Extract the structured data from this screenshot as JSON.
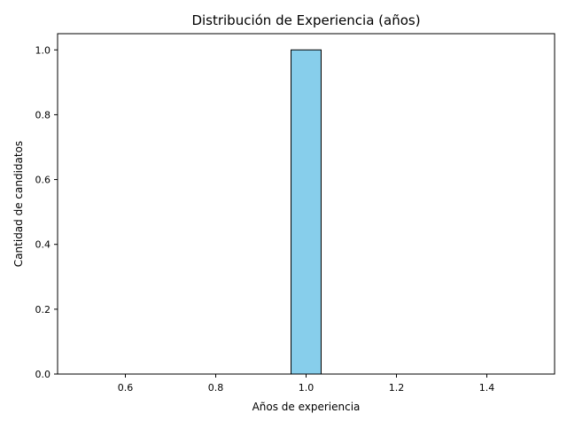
{
  "chart_data": {
    "type": "bar",
    "title": "Distribución de Experiencia (años)",
    "xlabel": "Años de experiencia",
    "ylabel": "Cantidad de candidatos",
    "xlim": [
      0.45,
      1.55
    ],
    "ylim": [
      0,
      1.05
    ],
    "x_ticks": [
      "0.6",
      "0.8",
      "1.0",
      "1.2",
      "1.4"
    ],
    "y_ticks": [
      "0.0",
      "0.2",
      "0.4",
      "0.6",
      "0.8",
      "1.0"
    ],
    "bins": [
      {
        "start": 0.5,
        "end": 0.5667,
        "count": 0
      },
      {
        "start": 0.5667,
        "end": 0.6333,
        "count": 0
      },
      {
        "start": 0.6333,
        "end": 0.7,
        "count": 0
      },
      {
        "start": 0.7,
        "end": 0.7667,
        "count": 0
      },
      {
        "start": 0.7667,
        "end": 0.8333,
        "count": 0
      },
      {
        "start": 0.8333,
        "end": 0.9,
        "count": 0
      },
      {
        "start": 0.9,
        "end": 0.9667,
        "count": 0
      },
      {
        "start": 0.9667,
        "end": 1.0333,
        "count": 1
      },
      {
        "start": 1.0333,
        "end": 1.1,
        "count": 0
      },
      {
        "start": 1.1,
        "end": 1.1667,
        "count": 0
      },
      {
        "start": 1.1667,
        "end": 1.2333,
        "count": 0
      },
      {
        "start": 1.2333,
        "end": 1.3,
        "count": 0
      },
      {
        "start": 1.3,
        "end": 1.3667,
        "count": 0
      },
      {
        "start": 1.3667,
        "end": 1.4333,
        "count": 0
      },
      {
        "start": 1.4333,
        "end": 1.5,
        "count": 0
      }
    ],
    "grid": false,
    "legend": "none",
    "colors": {
      "bar_fill": "#87ceeb",
      "bar_edge": "#000000",
      "axis": "#000000",
      "background": "#ffffff"
    }
  }
}
